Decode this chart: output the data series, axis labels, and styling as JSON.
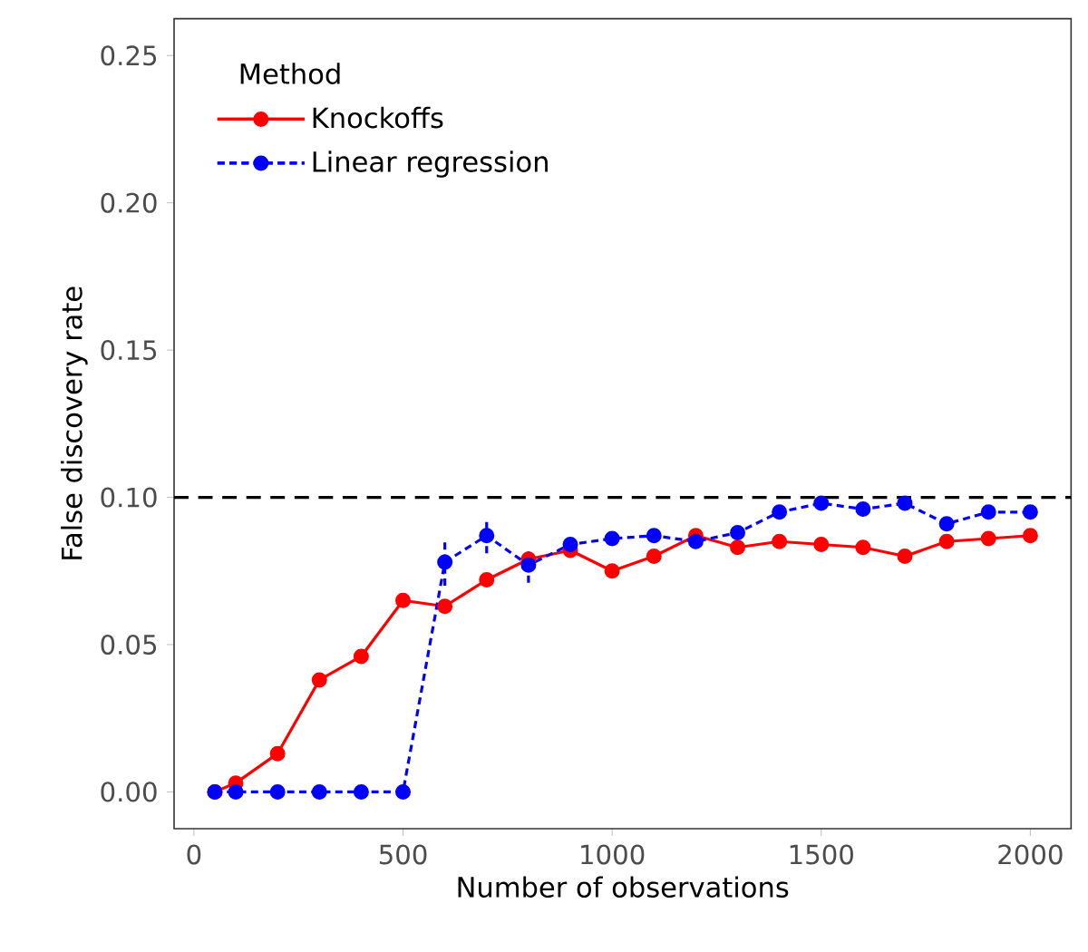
{
  "chart_data": {
    "type": "line",
    "xlabel": "Number of observations",
    "ylabel": "False discovery rate",
    "legend_title": "Method",
    "legend": "top left",
    "marker": "circle",
    "x": [
      50,
      100,
      200,
      300,
      400,
      500,
      600,
      700,
      800,
      900,
      1000,
      1100,
      1200,
      1300,
      1400,
      1500,
      1600,
      1700,
      1800,
      1900,
      2000
    ],
    "series": [
      {
        "name": "Knockoffs",
        "color": "#ff0000",
        "line_style": "solid",
        "values": [
          0,
          0.003,
          0.013,
          0.038,
          0.046,
          0.065,
          0.063,
          0.072,
          0.079,
          0.082,
          0.075,
          0.08,
          0.087,
          0.083,
          0.085,
          0.084,
          0.083,
          0.08,
          0.085,
          0.086,
          0.087
        ]
      },
      {
        "name": "Linear regression",
        "color": "#0000ff",
        "line_style": "dashed",
        "values": [
          0,
          0,
          0,
          0,
          0,
          0,
          0.078,
          0.087,
          0.077,
          0.084,
          0.086,
          0.087,
          0.085,
          0.088,
          0.095,
          0.098,
          0.096,
          0.098,
          0.091,
          0.095,
          0.095
        ],
        "errors": [
          null,
          null,
          null,
          null,
          null,
          null,
          0.008,
          0.006,
          0.006,
          null,
          null,
          null,
          null,
          null,
          null,
          null,
          null,
          null,
          null,
          null,
          null
        ]
      }
    ],
    "ref_lines": [
      {
        "axis": "y",
        "value": 0.1,
        "color": "#000000",
        "line_style": "dashed"
      }
    ],
    "xlim": [
      -47.5,
      2097.5
    ],
    "xticks": [
      0,
      500,
      1000,
      1500,
      2000
    ],
    "ylim": [
      -0.0125,
      0.2625
    ],
    "yticks": [
      {
        "value": 0,
        "label": "0.00"
      },
      {
        "value": 0.05,
        "label": "0.05"
      },
      {
        "value": 0.1,
        "label": "0.10"
      },
      {
        "value": 0.15,
        "label": "0.15"
      },
      {
        "value": 0.2,
        "label": "0.20"
      },
      {
        "value": 0.25,
        "label": "0.25"
      }
    ],
    "grid": false
  }
}
